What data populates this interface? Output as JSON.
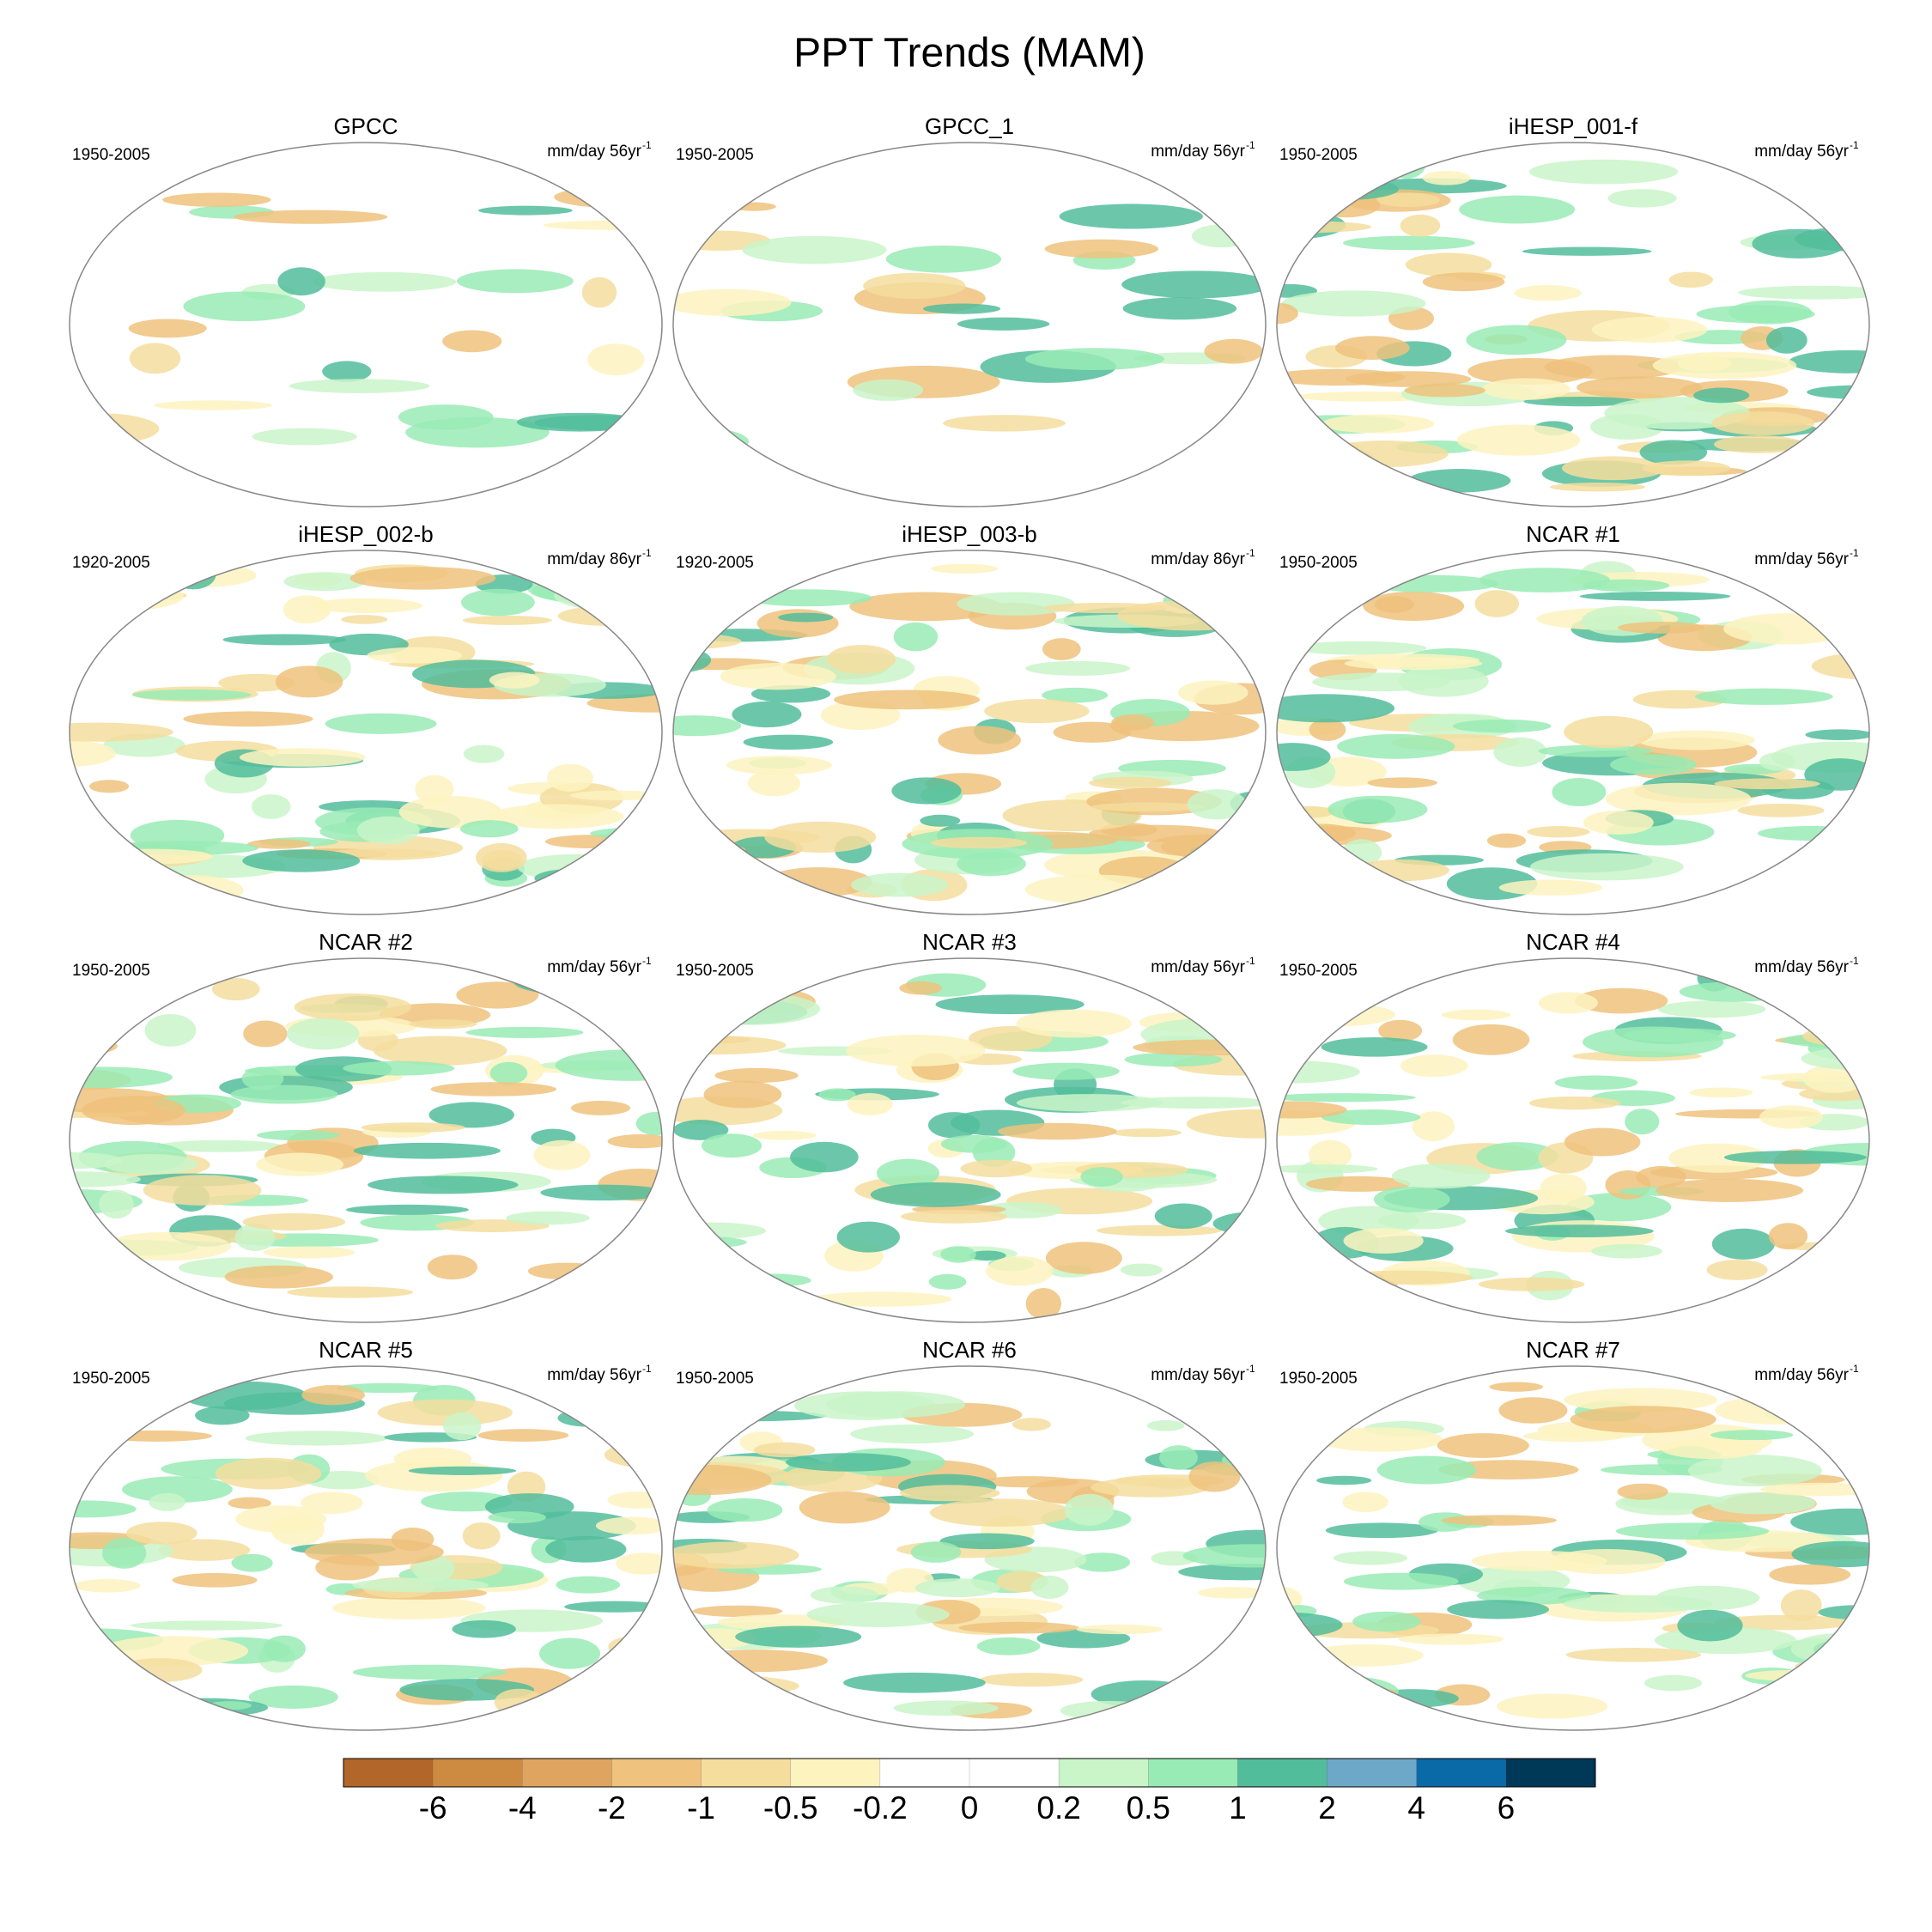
{
  "title": "PPT Trends (MAM)",
  "panels": [
    {
      "title": "GPCC",
      "period": "1950-2005",
      "units": "mm/day 56yr",
      "units_exp": "-1"
    },
    {
      "title": "GPCC_1",
      "period": "1950-2005",
      "units": "mm/day 56yr",
      "units_exp": "-1"
    },
    {
      "title": "iHESP_001-f",
      "period": "1950-2005",
      "units": "mm/day 56yr",
      "units_exp": "-1"
    },
    {
      "title": "iHESP_002-b",
      "period": "1920-2005",
      "units": "mm/day 86yr",
      "units_exp": "-1"
    },
    {
      "title": "iHESP_003-b",
      "period": "1920-2005",
      "units": "mm/day 86yr",
      "units_exp": "-1"
    },
    {
      "title": "NCAR #1",
      "period": "1950-2005",
      "units": "mm/day 56yr",
      "units_exp": "-1"
    },
    {
      "title": "NCAR #2",
      "period": "1950-2005",
      "units": "mm/day 56yr",
      "units_exp": "-1"
    },
    {
      "title": "NCAR #3",
      "period": "1950-2005",
      "units": "mm/day 56yr",
      "units_exp": "-1"
    },
    {
      "title": "NCAR #4",
      "period": "1950-2005",
      "units": "mm/day 56yr",
      "units_exp": "-1"
    },
    {
      "title": "NCAR #5",
      "period": "1950-2005",
      "units": "mm/day 56yr",
      "units_exp": "-1"
    },
    {
      "title": "NCAR #6",
      "period": "1950-2005",
      "units": "mm/day 56yr",
      "units_exp": "-1"
    },
    {
      "title": "NCAR #7",
      "period": "1950-2005",
      "units": "mm/day 56yr",
      "units_exp": "-1"
    }
  ],
  "colorbar": {
    "levels": [
      -6,
      -4,
      -2,
      -1,
      -0.5,
      -0.2,
      0,
      0.2,
      0.5,
      1,
      2,
      4,
      6
    ],
    "colors": [
      "#b2662a",
      "#cd8a41",
      "#dfa45f",
      "#efc27d",
      "#f4dd9d",
      "#fdf3bf",
      "#ffffff",
      "#ffffff",
      "#c9f5c9",
      "#99ebb5",
      "#52bd9b",
      "#6ea8c9",
      "#0a6aa8",
      "#003857"
    ]
  }
}
